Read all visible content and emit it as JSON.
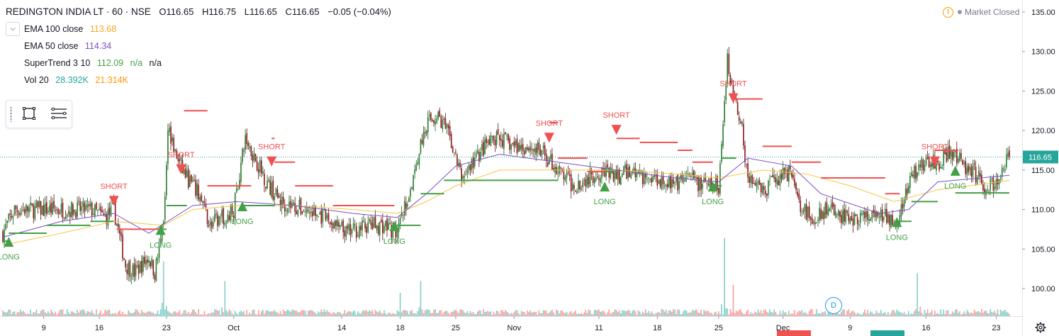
{
  "header": {
    "symbol": "REDINGTON INDIA LT · 60 · NSE",
    "open": "O116.65",
    "high": "H116.75",
    "low": "L116.65",
    "close": "C116.65",
    "change": "−0.05 (−0.04%)"
  },
  "indicators": [
    {
      "name": "EMA 100 close",
      "value": "113.68",
      "value2": "",
      "color": "#f5a623"
    },
    {
      "name": "EMA 50 close",
      "value": "114.34",
      "value2": "",
      "color": "#7b4fc2"
    },
    {
      "name": "SuperTrend 3 10",
      "value": "112.09",
      "value2": "n/a",
      "value3": "n/a",
      "color": "#43a047"
    },
    {
      "name": "Vol 20",
      "value": "28.392K",
      "value2": "21.314K",
      "color": "#26a69a",
      "color2": "#ff9800"
    }
  ],
  "market_status": "Market Closed",
  "colors": {
    "up": "#26a69a",
    "down": "#ef5350",
    "body_up": "#2e7d32",
    "body_down": "#8b1a1a",
    "supertrend_up": "#43a047",
    "supertrend_down": "#f05050",
    "ema100": "#f5c542",
    "ema50": "#7b4fc2",
    "price_line": "#26a69a",
    "price_label_bg": "#26a69a"
  },
  "icons": [
    "collapse-icon",
    "rectangle-tool-icon",
    "lines-tool-icon",
    "warning-icon",
    "gear-icon"
  ],
  "chart_data": {
    "type": "candlestick",
    "title": "REDINGTON INDIA LT · 60 · NSE",
    "ylim": [
      97,
      136
    ],
    "y_ticks": [
      "135.00",
      "130.00",
      "125.00",
      "120.00",
      "115.00",
      "110.00",
      "105.00",
      "100.00"
    ],
    "y_tick_values": [
      135,
      130,
      125,
      120,
      115,
      110,
      105,
      100
    ],
    "last_price": 116.65,
    "last_price_label": "116.65",
    "x_ticks": [
      "9",
      "16",
      "23",
      "Oct",
      "14",
      "18",
      "25",
      "Nov",
      "11",
      "18",
      "25",
      "Dec",
      "9",
      "16",
      "23"
    ],
    "x_tick_bar_index": [
      28,
      66,
      112,
      158,
      232,
      272,
      310,
      350,
      408,
      448,
      490,
      534,
      580,
      632,
      680
    ],
    "bar_count": 690,
    "price_path": [
      [
        0,
        107
      ],
      [
        8,
        110
      ],
      [
        25,
        110
      ],
      [
        45,
        110
      ],
      [
        60,
        110
      ],
      [
        70,
        109
      ],
      [
        76,
        110
      ],
      [
        84,
        103
      ],
      [
        90,
        102
      ],
      [
        100,
        104
      ],
      [
        104,
        102
      ],
      [
        110,
        108
      ],
      [
        113,
        121
      ],
      [
        118,
        117
      ],
      [
        126,
        114
      ],
      [
        134,
        112
      ],
      [
        142,
        108
      ],
      [
        150,
        109
      ],
      [
        158,
        110
      ],
      [
        166,
        119
      ],
      [
        174,
        116
      ],
      [
        182,
        113
      ],
      [
        190,
        111
      ],
      [
        205,
        110
      ],
      [
        220,
        109
      ],
      [
        235,
        107
      ],
      [
        250,
        108
      ],
      [
        262,
        108
      ],
      [
        270,
        107
      ],
      [
        278,
        112
      ],
      [
        284,
        117
      ],
      [
        290,
        121
      ],
      [
        298,
        122
      ],
      [
        306,
        119
      ],
      [
        314,
        114
      ],
      [
        322,
        116
      ],
      [
        330,
        118
      ],
      [
        340,
        119
      ],
      [
        350,
        118
      ],
      [
        360,
        118
      ],
      [
        370,
        117
      ],
      [
        380,
        115
      ],
      [
        390,
        113
      ],
      [
        400,
        114
      ],
      [
        410,
        115
      ],
      [
        420,
        114
      ],
      [
        430,
        115
      ],
      [
        440,
        114
      ],
      [
        450,
        114
      ],
      [
        460,
        113
      ],
      [
        470,
        114
      ],
      [
        480,
        113
      ],
      [
        490,
        113
      ],
      [
        496,
        129
      ],
      [
        500,
        125
      ],
      [
        506,
        120
      ],
      [
        510,
        114
      ],
      [
        520,
        112
      ],
      [
        530,
        114
      ],
      [
        540,
        115
      ],
      [
        546,
        110
      ],
      [
        556,
        109
      ],
      [
        566,
        110
      ],
      [
        576,
        109
      ],
      [
        590,
        109
      ],
      [
        604,
        109
      ],
      [
        614,
        109
      ],
      [
        620,
        113
      ],
      [
        628,
        116
      ],
      [
        640,
        116
      ],
      [
        648,
        117
      ],
      [
        656,
        116
      ],
      [
        664,
        115
      ],
      [
        672,
        113
      ],
      [
        680,
        113
      ],
      [
        689,
        116.65
      ]
    ],
    "supertrend": [
      {
        "from": 0,
        "to": 4,
        "value": 106,
        "dir": "up"
      },
      {
        "from": 4,
        "to": 30,
        "value": 107,
        "dir": "up"
      },
      {
        "from": 30,
        "to": 60,
        "value": 108,
        "dir": "up"
      },
      {
        "from": 60,
        "to": 76,
        "value": 108.5,
        "dir": "up"
      },
      {
        "from": 76,
        "to": 78,
        "value": 111,
        "dir": "down"
      },
      {
        "from": 78,
        "to": 108,
        "value": 107.5,
        "dir": "down"
      },
      {
        "from": 108,
        "to": 112,
        "value": 107.5,
        "dir": "up"
      },
      {
        "from": 112,
        "to": 126,
        "value": 110.5,
        "dir": "up"
      },
      {
        "from": 122,
        "to": 124,
        "value": 115,
        "dir": "down"
      },
      {
        "from": 124,
        "to": 140,
        "value": 122.5,
        "dir": "down"
      },
      {
        "from": 140,
        "to": 160,
        "value": 113,
        "dir": "down"
      },
      {
        "from": 160,
        "to": 170,
        "value": 113,
        "dir": "down"
      },
      {
        "from": 164,
        "to": 186,
        "value": 110.5,
        "dir": "up"
      },
      {
        "from": 184,
        "to": 186,
        "value": 119,
        "dir": "down"
      },
      {
        "from": 186,
        "to": 200,
        "value": 116,
        "dir": "down"
      },
      {
        "from": 200,
        "to": 226,
        "value": 113,
        "dir": "down"
      },
      {
        "from": 226,
        "to": 268,
        "value": 110.5,
        "dir": "down"
      },
      {
        "from": 268,
        "to": 286,
        "value": 108,
        "dir": "up"
      },
      {
        "from": 286,
        "to": 302,
        "value": 112,
        "dir": "up"
      },
      {
        "from": 302,
        "to": 380,
        "value": 113.7,
        "dir": "up"
      },
      {
        "from": 374,
        "to": 380,
        "value": 121,
        "dir": "down"
      },
      {
        "from": 380,
        "to": 400,
        "value": 116.5,
        "dir": "down"
      },
      {
        "from": 400,
        "to": 412,
        "value": 114.8,
        "dir": "down"
      },
      {
        "from": 412,
        "to": 420,
        "value": 114.8,
        "dir": "up"
      },
      {
        "from": 420,
        "to": 436,
        "value": 119,
        "dir": "down"
      },
      {
        "from": 436,
        "to": 462,
        "value": 118.5,
        "dir": "down"
      },
      {
        "from": 462,
        "to": 472,
        "value": 117.5,
        "dir": "down"
      },
      {
        "from": 472,
        "to": 486,
        "value": 116,
        "dir": "down"
      },
      {
        "from": 486,
        "to": 492,
        "value": 113,
        "dir": "up"
      },
      {
        "from": 492,
        "to": 502,
        "value": 116.5,
        "dir": "up"
      },
      {
        "from": 500,
        "to": 520,
        "value": 124,
        "dir": "down"
      },
      {
        "from": 520,
        "to": 540,
        "value": 118,
        "dir": "down"
      },
      {
        "from": 540,
        "to": 560,
        "value": 116,
        "dir": "down"
      },
      {
        "from": 560,
        "to": 604,
        "value": 114,
        "dir": "down"
      },
      {
        "from": 604,
        "to": 614,
        "value": 112,
        "dir": "down"
      },
      {
        "from": 612,
        "to": 622,
        "value": 108.5,
        "dir": "up"
      },
      {
        "from": 622,
        "to": 640,
        "value": 111,
        "dir": "up"
      },
      {
        "from": 638,
        "to": 654,
        "value": 117.5,
        "dir": "down"
      },
      {
        "from": 652,
        "to": 689,
        "value": 112.1,
        "dir": "up"
      }
    ],
    "ema100": [
      [
        0,
        105.5
      ],
      [
        40,
        107
      ],
      [
        76,
        108.5
      ],
      [
        110,
        108
      ],
      [
        130,
        110
      ],
      [
        160,
        110.5
      ],
      [
        200,
        110.5
      ],
      [
        240,
        110
      ],
      [
        270,
        109.5
      ],
      [
        290,
        111
      ],
      [
        310,
        113
      ],
      [
        340,
        115
      ],
      [
        380,
        115
      ],
      [
        420,
        115
      ],
      [
        460,
        114.5
      ],
      [
        490,
        114
      ],
      [
        520,
        115
      ],
      [
        550,
        114.5
      ],
      [
        580,
        113
      ],
      [
        610,
        111
      ],
      [
        640,
        112.5
      ],
      [
        689,
        113.68
      ]
    ],
    "ema50": [
      [
        0,
        106.5
      ],
      [
        40,
        108.5
      ],
      [
        76,
        109.5
      ],
      [
        100,
        107
      ],
      [
        130,
        110.5
      ],
      [
        160,
        111
      ],
      [
        200,
        110.5
      ],
      [
        240,
        109.5
      ],
      [
        270,
        109
      ],
      [
        290,
        112
      ],
      [
        310,
        115.5
      ],
      [
        340,
        117
      ],
      [
        380,
        116
      ],
      [
        420,
        115
      ],
      [
        460,
        114
      ],
      [
        490,
        113.5
      ],
      [
        510,
        116.5
      ],
      [
        540,
        115.5
      ],
      [
        560,
        112
      ],
      [
        600,
        109.5
      ],
      [
        620,
        110
      ],
      [
        640,
        113.5
      ],
      [
        689,
        114.34
      ]
    ],
    "signals": [
      {
        "type": "LONG",
        "bar": 4,
        "price": 106
      },
      {
        "type": "SHORT",
        "bar": 76,
        "price": 111
      },
      {
        "type": "LONG",
        "bar": 108,
        "price": 107.5
      },
      {
        "type": "SHORT",
        "bar": 122,
        "price": 115
      },
      {
        "type": "LONG",
        "bar": 164,
        "price": 110.5
      },
      {
        "type": "SHORT",
        "bar": 184,
        "price": 116
      },
      {
        "type": "LONG",
        "bar": 268,
        "price": 108
      },
      {
        "type": "SHORT",
        "bar": 374,
        "price": 119
      },
      {
        "type": "LONG",
        "bar": 412,
        "price": 113
      },
      {
        "type": "SHORT",
        "bar": 420,
        "price": 120
      },
      {
        "type": "LONG",
        "bar": 486,
        "price": 113
      },
      {
        "type": "SHORT",
        "bar": 500,
        "price": 124
      },
      {
        "type": "LONG",
        "bar": 612,
        "price": 108.5
      },
      {
        "type": "SHORT",
        "bar": 638,
        "price": 116
      },
      {
        "type": "LONG",
        "bar": 652,
        "price": 115
      }
    ],
    "volume_spikes": [
      [
        110,
        0.7
      ],
      [
        152,
        0.45
      ],
      [
        272,
        0.3
      ],
      [
        286,
        0.45
      ],
      [
        494,
        1.0
      ],
      [
        500,
        0.4
      ],
      [
        626,
        0.55
      ]
    ]
  }
}
